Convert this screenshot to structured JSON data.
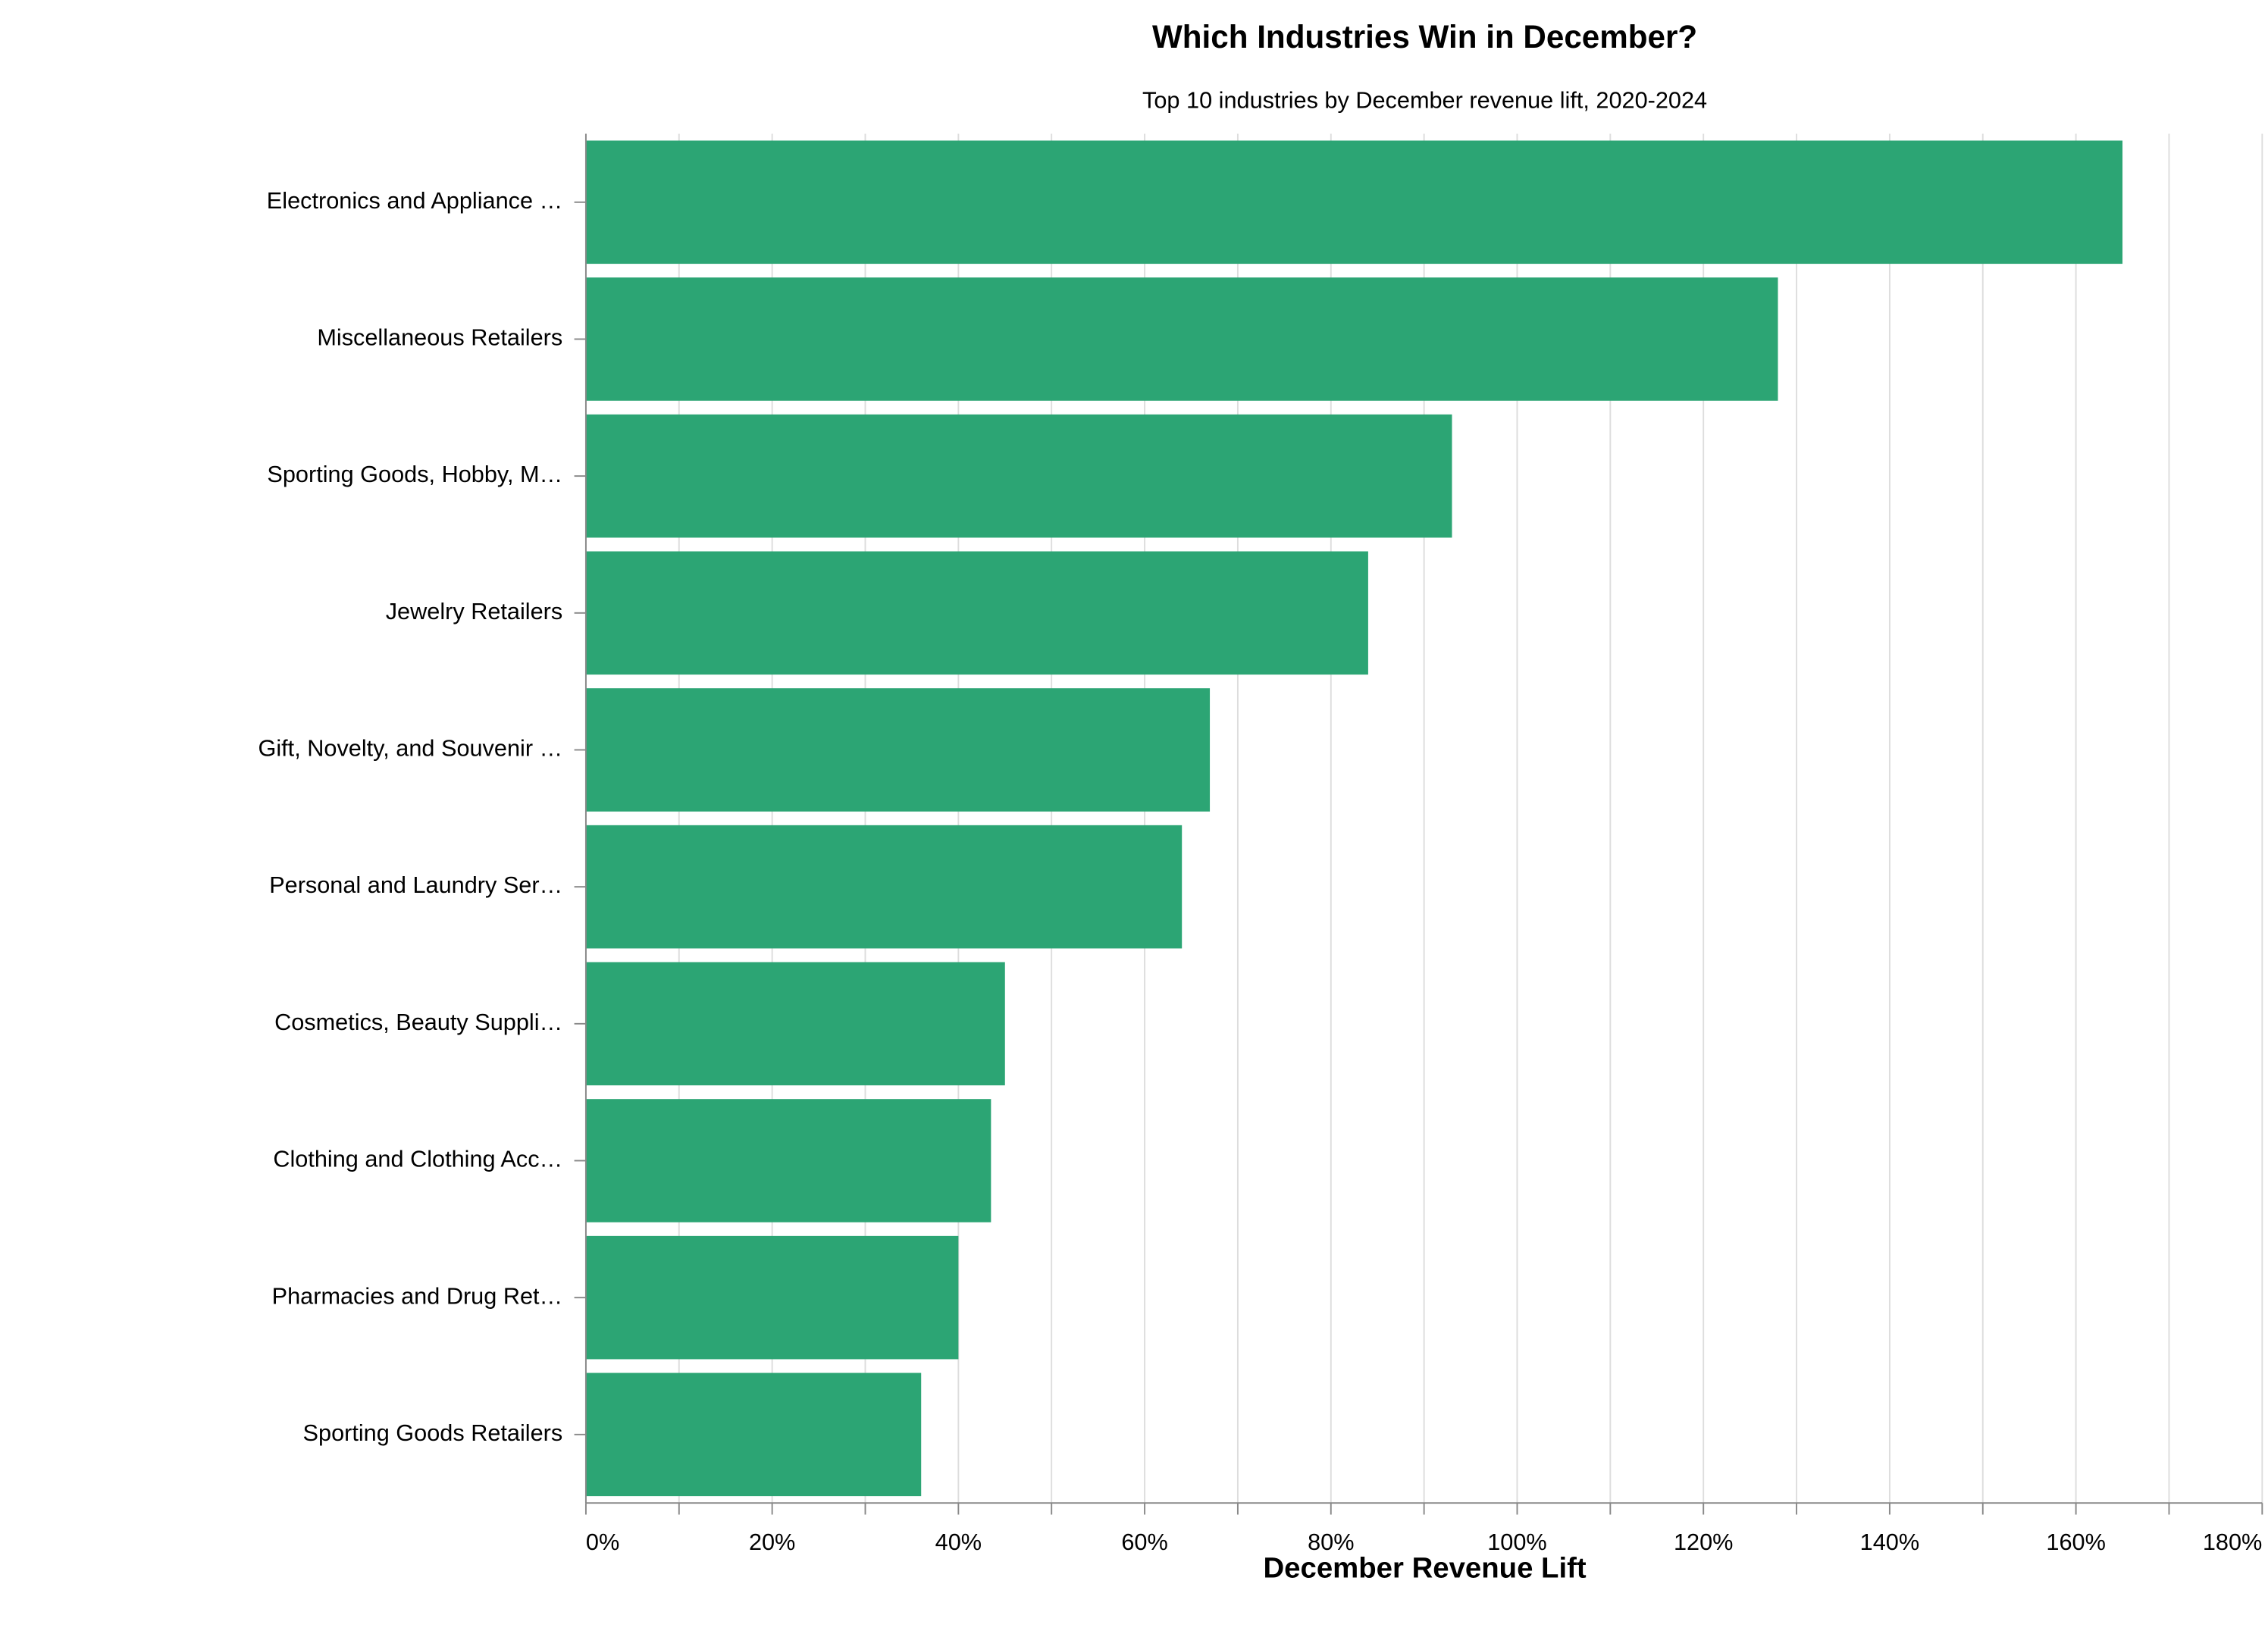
{
  "chart_data": {
    "type": "bar",
    "orientation": "horizontal",
    "title": "Which Industries Win in December?",
    "subtitle": "Top 10 industries by December revenue lift, 2020-2024",
    "x_label": "December Revenue Lift",
    "categories": [
      "Electronics and Appliance …",
      "Miscellaneous Retailers",
      "Sporting Goods, Hobby, M…",
      "Jewelry Retailers",
      "Gift, Novelty, and Souvenir …",
      "Personal and Laundry Ser…",
      "Cosmetics, Beauty Suppli…",
      "Clothing and Clothing Acc…",
      "Pharmacies and Drug Ret…",
      "Sporting Goods Retailers"
    ],
    "values": [
      165,
      128,
      93,
      84,
      67,
      64,
      45,
      43.5,
      40,
      36
    ],
    "color": "#2ca574",
    "xlim": [
      0,
      180
    ],
    "xticks": [
      {
        "value": 0,
        "label": "0%"
      },
      {
        "value": 10,
        "label": null
      },
      {
        "value": 20,
        "label": "20%"
      },
      {
        "value": 30,
        "label": null
      },
      {
        "value": 40,
        "label": "40%"
      },
      {
        "value": 50,
        "label": null
      },
      {
        "value": 60,
        "label": "60%"
      },
      {
        "value": 70,
        "label": null
      },
      {
        "value": 80,
        "label": "80%"
      },
      {
        "value": 90,
        "label": null
      },
      {
        "value": 100,
        "label": "100%"
      },
      {
        "value": 110,
        "label": null
      },
      {
        "value": 120,
        "label": "120%"
      },
      {
        "value": 130,
        "label": null
      },
      {
        "value": 140,
        "label": "140%"
      },
      {
        "value": 150,
        "label": null
      },
      {
        "value": 160,
        "label": "160%"
      },
      {
        "value": 170,
        "label": null
      },
      {
        "value": 180,
        "label": "180%"
      }
    ],
    "grid": true
  }
}
